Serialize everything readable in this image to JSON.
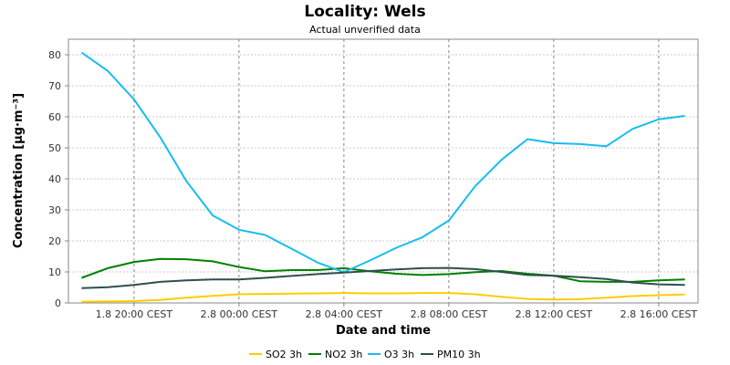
{
  "chart_data": {
    "type": "line",
    "title": "Locality: Wels",
    "subtitle": "Actual unverified data",
    "xlabel": "Date and time",
    "ylabel": "Concentration [µg·m⁻³]",
    "ylim": [
      0,
      85
    ],
    "xlim": [
      -2.5,
      21.5
    ],
    "x_unit": "hours since 1.8 20:00 CEST",
    "x_ticks": [
      {
        "at": 0,
        "label": "1.8 20:00 CEST"
      },
      {
        "at": 4,
        "label": "2.8 00:00 CEST"
      },
      {
        "at": 8,
        "label": "2.8 04:00 CEST"
      },
      {
        "at": 12,
        "label": "2.8 08:00 CEST"
      },
      {
        "at": 16,
        "label": "2.8 12:00 CEST"
      },
      {
        "at": 20,
        "label": "2.8 16:00 CEST"
      }
    ],
    "y_ticks": [
      0,
      10,
      20,
      30,
      40,
      50,
      60,
      70,
      80
    ],
    "grid": true,
    "legend_position": "bottom",
    "x": [
      -2,
      -1,
      0,
      1,
      2,
      3,
      4,
      5,
      6,
      7,
      8,
      9,
      10,
      11,
      12,
      13,
      14,
      15,
      16,
      17,
      18,
      19,
      20,
      21
    ],
    "series": [
      {
        "name": "SO2 3h",
        "color": "#ffcc00",
        "values": [
          0.4,
          0.5,
          0.6,
          1.0,
          1.7,
          2.3,
          2.8,
          2.9,
          3.0,
          3.1,
          3.2,
          3.1,
          3.1,
          3.2,
          3.2,
          2.8,
          2.0,
          1.3,
          1.1,
          1.2,
          1.7,
          2.2,
          2.5,
          2.7
        ]
      },
      {
        "name": "NO2 3h",
        "color": "#008000",
        "values": [
          8.1,
          11.2,
          13.2,
          14.2,
          14.1,
          13.4,
          11.6,
          10.2,
          10.6,
          10.6,
          11.2,
          10.2,
          9.4,
          9.0,
          9.3,
          9.9,
          10.3,
          9.4,
          8.8,
          7.0,
          6.8,
          6.8,
          7.3,
          7.6
        ]
      },
      {
        "name": "O3 3h",
        "color": "#15bdf0",
        "values": [
          80.7,
          74.8,
          65.6,
          53.4,
          39.2,
          28.2,
          23.6,
          21.9,
          17.5,
          13.0,
          9.9,
          13.7,
          17.8,
          21.2,
          26.6,
          37.6,
          46.1,
          52.8,
          51.5,
          51.2,
          50.5,
          56.1,
          59.2,
          60.3
        ]
      },
      {
        "name": "PM10 3h",
        "color": "#2f4f4f",
        "values": [
          4.8,
          5.1,
          5.8,
          6.8,
          7.3,
          7.6,
          7.6,
          8.1,
          8.7,
          9.3,
          9.8,
          10.3,
          10.8,
          11.2,
          11.3,
          10.9,
          10.0,
          9.0,
          8.8,
          8.3,
          7.7,
          6.6,
          6.0,
          5.8
        ]
      }
    ]
  }
}
